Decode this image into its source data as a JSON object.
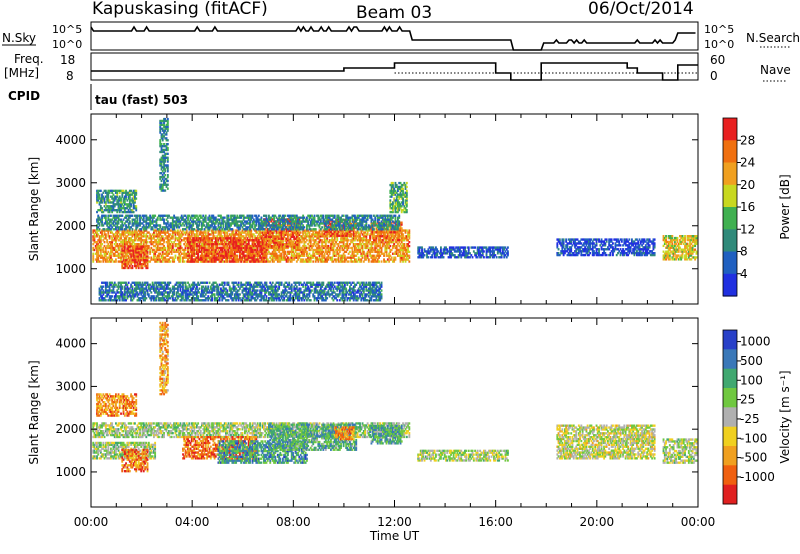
{
  "header": {
    "station": "Kapuskasing (fitACF)",
    "beam": "Beam 03",
    "date": "06/Oct/2014"
  },
  "params": {
    "nsky_label": "N.Sky",
    "nsky_ticks": [
      "10^5",
      "10^0"
    ],
    "nsearch_label": "N.Search",
    "nsearch_ticks": [
      "10^5",
      "10^0"
    ],
    "freq_label_1": "Freq.",
    "freq_label_2": "[MHz]",
    "freq_ticks": [
      "18",
      "8"
    ],
    "nave_label": "Nave",
    "nave_ticks": [
      "60",
      "0"
    ],
    "cpid_label": "CPID",
    "cpid_value": "tau (fast) 503"
  },
  "colors": {
    "power": [
      "#2030e0",
      "#2060c0",
      "#308a7a",
      "#40b050",
      "#c8d820",
      "#f0a020",
      "#f07010",
      "#e82020"
    ],
    "velocity": [
      "#2840c8",
      "#3a78b8",
      "#40a870",
      "#70c840",
      "#b0b0b0",
      "#f0d020",
      "#f0a020",
      "#f06010",
      "#e02020"
    ]
  },
  "chart_data": [
    {
      "type": "heatmap",
      "name": "power",
      "ylabel": "Slant Range [km]",
      "yticks": [
        1000,
        2000,
        3000,
        4000
      ],
      "ylim": [
        180,
        4600
      ],
      "xlim": [
        0,
        24
      ],
      "xticks": [
        "00:00",
        "04:00",
        "08:00",
        "12:00",
        "16:00",
        "20:00",
        "00:00"
      ],
      "colorbar": {
        "label": "Power [dB]",
        "ticks": [
          "4",
          "8",
          "12",
          "16",
          "20",
          "24",
          "28"
        ],
        "range": [
          0,
          32
        ]
      },
      "regions": [
        {
          "t0": 0.05,
          "t1": 12.6,
          "r0": 1150,
          "r1": 1900,
          "v": 0.72
        },
        {
          "t0": 1.2,
          "t1": 2.2,
          "r0": 1000,
          "r1": 1500,
          "v": 0.85
        },
        {
          "t0": 3.8,
          "t1": 6.9,
          "r0": 1150,
          "r1": 1700,
          "v": 0.9
        },
        {
          "t0": 6.8,
          "t1": 8.2,
          "r0": 1500,
          "r1": 2150,
          "v": 0.82
        },
        {
          "t0": 9.2,
          "t1": 10.5,
          "r0": 1750,
          "r1": 2150,
          "v": 0.86
        },
        {
          "t0": 11.0,
          "t1": 12.3,
          "r0": 1650,
          "r1": 2100,
          "v": 0.8
        },
        {
          "t0": 0.2,
          "t1": 12.2,
          "r0": 1900,
          "r1": 2250,
          "v": 0.3
        },
        {
          "t0": 0.2,
          "t1": 1.8,
          "r0": 2300,
          "r1": 2800,
          "v": 0.35
        },
        {
          "t0": 11.8,
          "t1": 12.5,
          "r0": 2300,
          "r1": 3000,
          "v": 0.4
        },
        {
          "t0": 12.9,
          "t1": 16.5,
          "r0": 1250,
          "r1": 1500,
          "v": 0.15
        },
        {
          "t0": 22.6,
          "t1": 23.95,
          "r0": 1200,
          "r1": 1750,
          "v": 0.6
        },
        {
          "t0": 18.4,
          "t1": 22.3,
          "r0": 1300,
          "r1": 1700,
          "v": 0.12
        },
        {
          "t0": 2.7,
          "t1": 3.0,
          "r0": 2800,
          "r1": 4500,
          "v": 0.3
        },
        {
          "t0": 0.3,
          "t1": 11.5,
          "r0": 250,
          "r1": 700,
          "v": 0.25
        }
      ]
    },
    {
      "type": "heatmap",
      "name": "velocity",
      "ylabel": "Slant Range [km]",
      "yticks": [
        1000,
        2000,
        3000,
        4000
      ],
      "ylim": [
        180,
        4600
      ],
      "xlim": [
        0,
        24
      ],
      "xticks": [
        "00:00",
        "04:00",
        "08:00",
        "12:00",
        "16:00",
        "20:00",
        "00:00"
      ],
      "xlabel": "Time UT",
      "colorbar": {
        "label": "Velocity [m s⁻¹]",
        "ticks": [
          "1000",
          "500",
          "100",
          "25",
          "-25",
          "-100",
          "-500",
          "-1000"
        ],
        "range": [
          -1200,
          1200
        ]
      },
      "regions": [
        {
          "t0": 0.05,
          "t1": 12.6,
          "r0": 1800,
          "r1": 2150,
          "v": 0.45
        },
        {
          "t0": 0.05,
          "t1": 2.5,
          "r0": 1300,
          "r1": 1700,
          "v": 0.45
        },
        {
          "t0": 1.2,
          "t1": 2.2,
          "r0": 1000,
          "r1": 1500,
          "v": 0.8
        },
        {
          "t0": 3.6,
          "t1": 6.5,
          "r0": 1300,
          "r1": 1800,
          "v": 0.82
        },
        {
          "t0": 5.0,
          "t1": 8.5,
          "r0": 1200,
          "r1": 1700,
          "v": 0.25
        },
        {
          "t0": 7.0,
          "t1": 10.5,
          "r0": 1500,
          "r1": 2100,
          "v": 0.3
        },
        {
          "t0": 9.6,
          "t1": 10.4,
          "r0": 1750,
          "r1": 2050,
          "v": 0.75
        },
        {
          "t0": 11.0,
          "t1": 12.3,
          "r0": 1650,
          "r1": 2100,
          "v": 0.3
        },
        {
          "t0": 0.2,
          "t1": 1.8,
          "r0": 2300,
          "r1": 2800,
          "v": 0.75
        },
        {
          "t0": 12.9,
          "t1": 16.5,
          "r0": 1250,
          "r1": 1500,
          "v": 0.48
        },
        {
          "t0": 22.6,
          "t1": 23.95,
          "r0": 1200,
          "r1": 1750,
          "v": 0.48
        },
        {
          "t0": 18.4,
          "t1": 22.3,
          "r0": 1300,
          "r1": 2100,
          "v": 0.52
        },
        {
          "t0": 2.7,
          "t1": 3.0,
          "r0": 2800,
          "r1": 4500,
          "v": 0.7
        }
      ]
    }
  ]
}
